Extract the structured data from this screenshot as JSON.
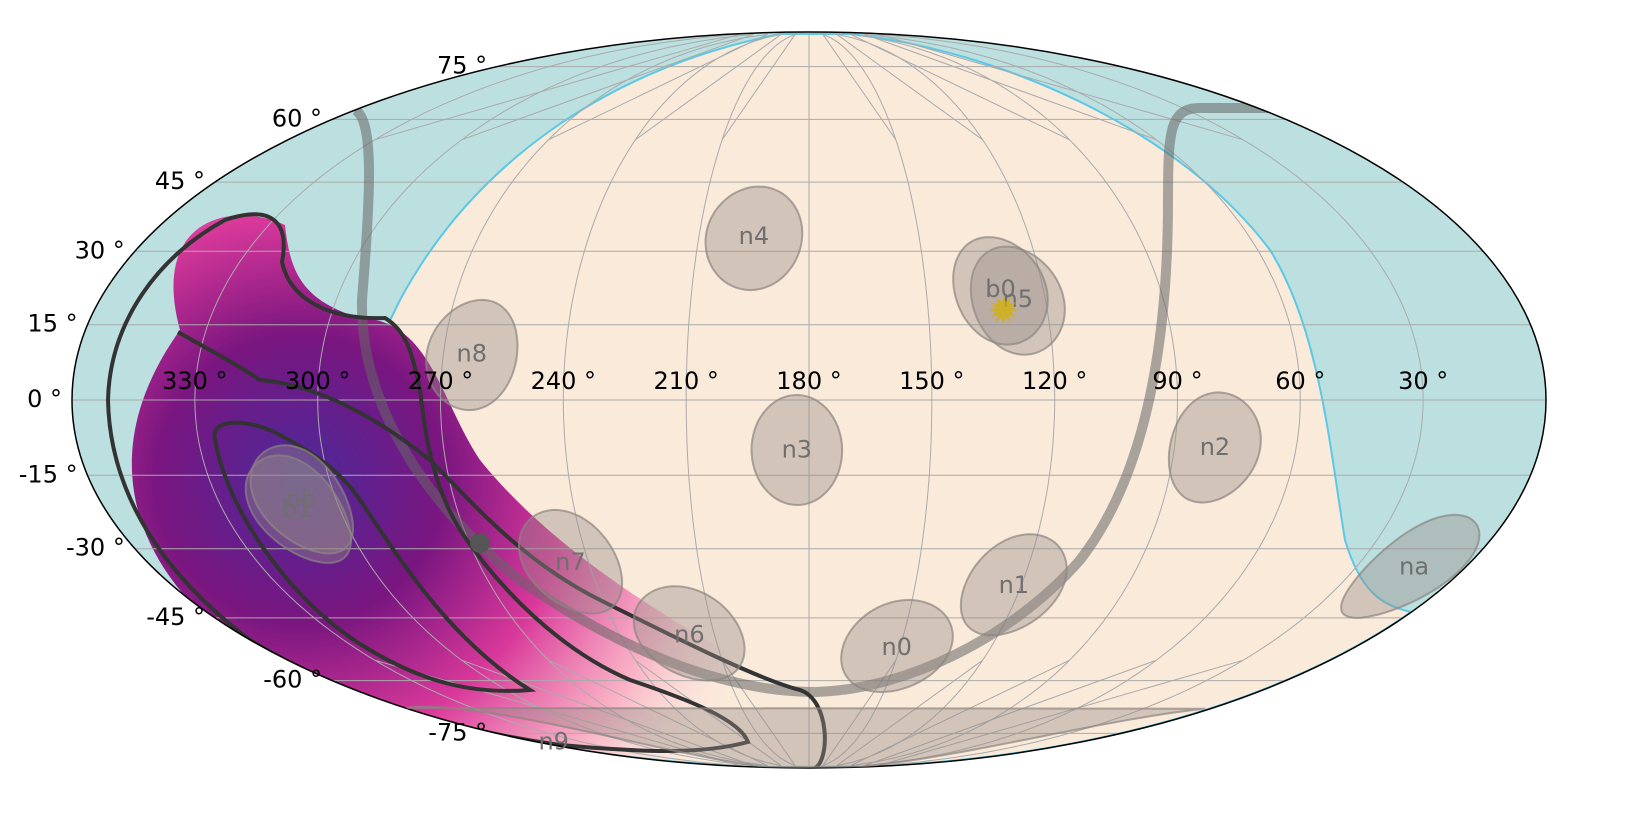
{
  "chart_data": {
    "type": "skymap",
    "projection": "mollweide",
    "grid": true,
    "lon_ticks": [
      {
        "value": 330,
        "label": "330 °"
      },
      {
        "value": 300,
        "label": "300 °"
      },
      {
        "value": 270,
        "label": "270 °"
      },
      {
        "value": 240,
        "label": "240 °"
      },
      {
        "value": 210,
        "label": "210 °"
      },
      {
        "value": 180,
        "label": "180 °"
      },
      {
        "value": 150,
        "label": "150 °"
      },
      {
        "value": 120,
        "label": "120 °"
      },
      {
        "value": 90,
        "label": "90 °"
      },
      {
        "value": 60,
        "label": "60 °"
      },
      {
        "value": 30,
        "label": "30 °"
      }
    ],
    "lat_ticks": [
      {
        "value": 75,
        "label": "75 °"
      },
      {
        "value": 60,
        "label": "60 °"
      },
      {
        "value": 45,
        "label": "45 °"
      },
      {
        "value": 30,
        "label": "30 °"
      },
      {
        "value": 15,
        "label": "15 °"
      },
      {
        "value": 0,
        "label": "0 °"
      },
      {
        "value": -15,
        "label": "-15 °"
      },
      {
        "value": -30,
        "label": "-30 °"
      },
      {
        "value": -45,
        "label": "-45 °"
      },
      {
        "value": -60,
        "label": "-60 °"
      },
      {
        "value": -75,
        "label": "-75 °"
      }
    ],
    "detectors": {
      "names": [
        "n0",
        "n1",
        "n2",
        "n3",
        "n4",
        "n5",
        "n6",
        "n7",
        "n8",
        "n9",
        "na",
        "nb",
        "b0",
        "b1"
      ],
      "lon": [
        151,
        122,
        80,
        183,
        195,
        127,
        218,
        245,
        263,
        350,
        14,
        309,
        131,
        311
      ],
      "lat": [
        -52,
        -38,
        -9.5,
        -10,
        33,
        20,
        -49,
        -33,
        9,
        -78,
        -34,
        -20,
        22,
        -22
      ]
    },
    "sun": {
      "lon": 131,
      "lat": 18
    }
  }
}
